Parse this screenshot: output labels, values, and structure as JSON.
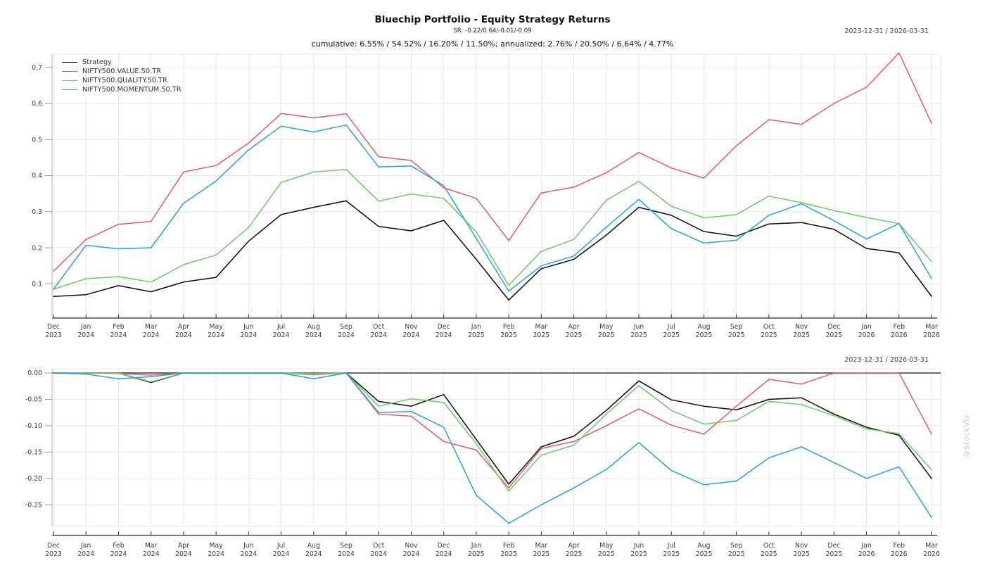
{
  "header": {
    "title": "Bluechip Portfolio - Equity Strategy Returns",
    "subtitle_sr": "SR: -0.22/0.64/-0.01/-0.09",
    "subtitle_cumulative": "cumulative: 6.55% / 54.52% / 16.20% / 11.50%; annualized: 2.76% / 20.50% / 6.64% / 4.77%",
    "date_range_top": "2023-12-31 / 2026-03-31",
    "date_range_bottom": "2023-12-31 / 2026-03-31"
  },
  "watermark": "@StockViz",
  "colors": {
    "strategy": "#0a0a0a",
    "value": "#e15c6c",
    "quality": "#6ec768",
    "momentum": "#2f9de3",
    "gridline": "#e7e7e7",
    "axis": "#2f2f2f"
  },
  "chart_data": [
    {
      "type": "line",
      "name": "cumulative-returns",
      "legend_position": "top-left",
      "grid": true,
      "ylim": [
        0.05,
        0.74
      ],
      "y_ticks": [
        "0.1",
        "0.2",
        "0.3",
        "0.4",
        "0.5",
        "0.6",
        "0.7"
      ],
      "categories": [
        "Dec 2023",
        "Jan 2024",
        "Feb 2024",
        "Mar 2024",
        "Apr 2024",
        "May 2024",
        "Jun 2024",
        "Jul 2024",
        "Aug 2024",
        "Sep 2024",
        "Oct 2024",
        "Nov 2024",
        "Dec 2024",
        "Jan 2025",
        "Feb 2025",
        "Mar 2025",
        "Apr 2025",
        "May 2025",
        "Jun 2025",
        "Jul 2025",
        "Aug 2025",
        "Sep 2025",
        "Oct 2025",
        "Nov 2025",
        "Dec 2025",
        "Jan 2026",
        "Feb 2026",
        "Mar 2026"
      ],
      "series": [
        {
          "name": "Strategy",
          "color": "#0a0a0a",
          "values": [
            0.065,
            0.07,
            0.095,
            0.078,
            0.105,
            0.118,
            0.218,
            0.292,
            0.312,
            0.33,
            0.259,
            0.247,
            0.276,
            0.168,
            0.055,
            0.142,
            0.168,
            0.235,
            0.312,
            0.29,
            0.245,
            0.232,
            0.266,
            0.27,
            0.251,
            0.198,
            0.186,
            0.0655
          ]
        },
        {
          "name": "NIFTY500.VALUE.50.TR",
          "color": "#e15c6c",
          "values": [
            0.135,
            0.223,
            0.265,
            0.273,
            0.41,
            0.428,
            0.49,
            0.572,
            0.56,
            0.571,
            0.452,
            0.442,
            0.366,
            0.337,
            0.22,
            0.352,
            0.368,
            0.408,
            0.464,
            0.421,
            0.393,
            0.483,
            0.555,
            0.542,
            0.6,
            0.645,
            0.74,
            0.5452
          ]
        },
        {
          "name": "NIFTY500.QUALITY.50.TR",
          "color": "#6ec768",
          "values": [
            0.085,
            0.114,
            0.12,
            0.105,
            0.153,
            0.18,
            0.256,
            0.381,
            0.41,
            0.417,
            0.329,
            0.349,
            0.337,
            0.244,
            0.096,
            0.19,
            0.223,
            0.332,
            0.384,
            0.315,
            0.283,
            0.292,
            0.343,
            0.325,
            0.303,
            0.284,
            0.267,
            0.162
          ]
        },
        {
          "name": "NIFTY500.MOMENTUM.50.TR",
          "color": "#2f9de3",
          "values": [
            0.085,
            0.207,
            0.197,
            0.2,
            0.323,
            0.385,
            0.471,
            0.537,
            0.521,
            0.54,
            0.424,
            0.427,
            0.372,
            0.226,
            0.08,
            0.15,
            0.177,
            0.257,
            0.334,
            0.253,
            0.213,
            0.221,
            0.29,
            0.322,
            0.275,
            0.224,
            0.267,
            0.115
          ]
        }
      ]
    },
    {
      "type": "line",
      "name": "drawdowns",
      "grid": true,
      "ylim": [
        -0.29,
        0.0
      ],
      "y_ticks": [
        "0.00",
        "-0.05",
        "-0.10",
        "-0.15",
        "-0.20",
        "-0.25"
      ],
      "categories": [
        "Dec 2023",
        "Jan 2024",
        "Feb 2024",
        "Mar 2024",
        "Apr 2024",
        "May 2024",
        "Jun 2024",
        "Jul 2024",
        "Aug 2024",
        "Sep 2024",
        "Oct 2024",
        "Nov 2024",
        "Dec 2024",
        "Jan 2025",
        "Feb 2025",
        "Mar 2025",
        "Apr 2025",
        "May 2025",
        "Jun 2025",
        "Jul 2025",
        "Aug 2025",
        "Sep 2025",
        "Oct 2025",
        "Nov 2025",
        "Dec 2025",
        "Jan 2026",
        "Feb 2026",
        "Mar 2026"
      ],
      "series": [
        {
          "name": "Strategy",
          "color": "#0a0a0a",
          "values": [
            0,
            0,
            0,
            -0.018,
            0,
            0,
            0,
            0,
            -0.002,
            0,
            -0.054,
            -0.063,
            -0.041,
            -0.126,
            -0.211,
            -0.14,
            -0.12,
            -0.071,
            -0.015,
            -0.051,
            -0.063,
            -0.07,
            -0.05,
            -0.047,
            -0.078,
            -0.103,
            -0.118,
            -0.2
          ]
        },
        {
          "name": "NIFTY500.VALUE.50.TR",
          "color": "#e15c6c",
          "values": [
            0,
            0,
            -0.001,
            -0.004,
            0,
            0,
            0,
            0,
            -0.003,
            0,
            -0.078,
            -0.082,
            -0.13,
            -0.146,
            -0.218,
            -0.143,
            -0.13,
            -0.1,
            -0.068,
            -0.099,
            -0.116,
            -0.063,
            -0.012,
            -0.021,
            0,
            0,
            0,
            -0.116
          ]
        },
        {
          "name": "NIFTY500.QUALITY.50.TR",
          "color": "#6ec768",
          "values": [
            0,
            0,
            0,
            -0.017,
            0,
            0,
            0,
            0,
            -0.001,
            0,
            -0.063,
            -0.049,
            -0.056,
            -0.134,
            -0.224,
            -0.156,
            -0.137,
            -0.078,
            -0.024,
            -0.071,
            -0.097,
            -0.09,
            -0.054,
            -0.06,
            -0.081,
            -0.106,
            -0.115,
            -0.184
          ]
        },
        {
          "name": "NIFTY500.MOMENTUM.50.TR",
          "color": "#2f9de3",
          "values": [
            0,
            -0.002,
            -0.011,
            -0.007,
            0,
            0,
            0,
            0,
            -0.011,
            0,
            -0.075,
            -0.073,
            -0.103,
            -0.232,
            -0.285,
            -0.25,
            -0.218,
            -0.183,
            -0.132,
            -0.185,
            -0.212,
            -0.205,
            -0.161,
            -0.14,
            -0.17,
            -0.2,
            -0.178,
            -0.274
          ]
        }
      ]
    }
  ]
}
